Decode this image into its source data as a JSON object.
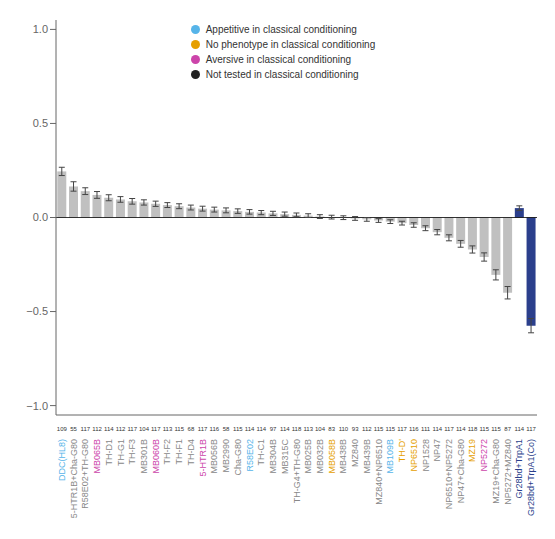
{
  "chart_data": {
    "type": "bar",
    "categories": [
      "DDC(HL8)",
      "5-HTR1B+Cha-G80",
      "R58E02+TH-G80",
      "MB065B",
      "TH-D1",
      "TH-G1",
      "TH-F3",
      "MB301B",
      "MB060B",
      "TH-F2",
      "TH-F1",
      "TH-D4",
      "5-HTR1B",
      "MB056B",
      "MB2990",
      "Cha-G80",
      "R58E02",
      "TH-C1",
      "MB304B",
      "MB315C",
      "TH-G4+TH-G80",
      "MB025B",
      "MB032B",
      "MB058B",
      "MB438B",
      "MZ840",
      "MB439B",
      "MZ840+NP6510",
      "MB109B",
      "TH-D'",
      "NP6510",
      "NP1528",
      "NP47",
      "NP6510+NP5272",
      "NP47+Cha-G80",
      "MZ19",
      "NP5272",
      "MZ19+Cha-G80",
      "NP5272+MZ840",
      "Gr28bd+TrpA1",
      "Gr28bd+TrpA1(Co)"
    ],
    "values": [
      0.245,
      0.165,
      0.14,
      0.12,
      0.105,
      0.096,
      0.086,
      0.08,
      0.073,
      0.066,
      0.06,
      0.053,
      0.047,
      0.042,
      0.038,
      0.034,
      0.03,
      0.026,
      0.022,
      0.018,
      0.014,
      0.01,
      0.005,
      0.002,
      -0.001,
      -0.005,
      -0.01,
      -0.016,
      -0.022,
      -0.03,
      -0.04,
      -0.057,
      -0.078,
      -0.108,
      -0.14,
      -0.17,
      -0.21,
      -0.305,
      -0.4,
      0.05,
      -0.575
    ],
    "errors": [
      0.022,
      0.025,
      0.018,
      0.018,
      0.016,
      0.015,
      0.015,
      0.014,
      0.014,
      0.013,
      0.013,
      0.013,
      0.013,
      0.013,
      0.013,
      0.012,
      0.012,
      0.011,
      0.011,
      0.011,
      0.01,
      0.01,
      0.01,
      0.01,
      0.01,
      0.01,
      0.01,
      0.01,
      0.01,
      0.01,
      0.012,
      0.013,
      0.014,
      0.016,
      0.018,
      0.019,
      0.022,
      0.027,
      0.033,
      0.012,
      0.038
    ],
    "n": [
      109,
      55,
      117,
      112,
      114,
      112,
      117,
      104,
      117,
      113,
      115,
      68,
      117,
      116,
      58,
      115,
      114,
      114,
      97,
      114,
      118,
      113,
      104,
      83,
      110,
      93,
      112,
      115,
      115,
      117,
      116,
      111,
      114,
      117,
      114,
      118,
      115,
      115,
      87,
      114,
      117
    ],
    "colors": [
      "#c0c0c0",
      "#c0c0c0",
      "#c0c0c0",
      "#c0c0c0",
      "#c0c0c0",
      "#c0c0c0",
      "#c0c0c0",
      "#c0c0c0",
      "#c0c0c0",
      "#c0c0c0",
      "#c0c0c0",
      "#c0c0c0",
      "#c0c0c0",
      "#c0c0c0",
      "#c0c0c0",
      "#c0c0c0",
      "#c0c0c0",
      "#c0c0c0",
      "#c0c0c0",
      "#c0c0c0",
      "#c0c0c0",
      "#c0c0c0",
      "#c0c0c0",
      "#c0c0c0",
      "#c0c0c0",
      "#c0c0c0",
      "#c0c0c0",
      "#c0c0c0",
      "#c0c0c0",
      "#c0c0c0",
      "#c0c0c0",
      "#c0c0c0",
      "#c0c0c0",
      "#c0c0c0",
      "#c0c0c0",
      "#c0c0c0",
      "#c0c0c0",
      "#c0c0c0",
      "#c0c0c0",
      "#2b3f8c",
      "#2b3f8c"
    ],
    "label_colors": [
      "#56b4e9",
      "#888888",
      "#888888",
      "#cc44aa",
      "#888888",
      "#888888",
      "#888888",
      "#888888",
      "#cc44aa",
      "#888888",
      "#888888",
      "#888888",
      "#cc44aa",
      "#888888",
      "#888888",
      "#888888",
      "#56b4e9",
      "#888888",
      "#888888",
      "#888888",
      "#888888",
      "#888888",
      "#888888",
      "#e69f00",
      "#888888",
      "#888888",
      "#888888",
      "#888888",
      "#56b4e9",
      "#e69f00",
      "#e69f00",
      "#888888",
      "#888888",
      "#888888",
      "#888888",
      "#e69f00",
      "#cc44aa",
      "#888888",
      "#888888",
      "#2b3f8c",
      "#2b3f8c"
    ],
    "legend_entries": [
      {
        "name": "Appetitive in classical conditioning",
        "color": "#56b4e9"
      },
      {
        "name": "No phenotype in classical conditioning",
        "color": "#e69f00"
      },
      {
        "name": "Aversive in classical conditioning",
        "color": "#cc44aa"
      },
      {
        "name": "Not tested in classical conditioning",
        "color": "#222222"
      }
    ],
    "legend": "upper left",
    "ylim": [
      -1.05,
      1.05
    ],
    "yticks": [
      {
        "value": -1.0,
        "label": "−1.0"
      },
      {
        "value": -0.5,
        "label": "−0.5"
      },
      {
        "value": 0.0,
        "label": "0.0"
      },
      {
        "value": 0.5,
        "label": "0.5"
      },
      {
        "value": 1.0,
        "label": "1.0"
      }
    ],
    "grid": false
  }
}
